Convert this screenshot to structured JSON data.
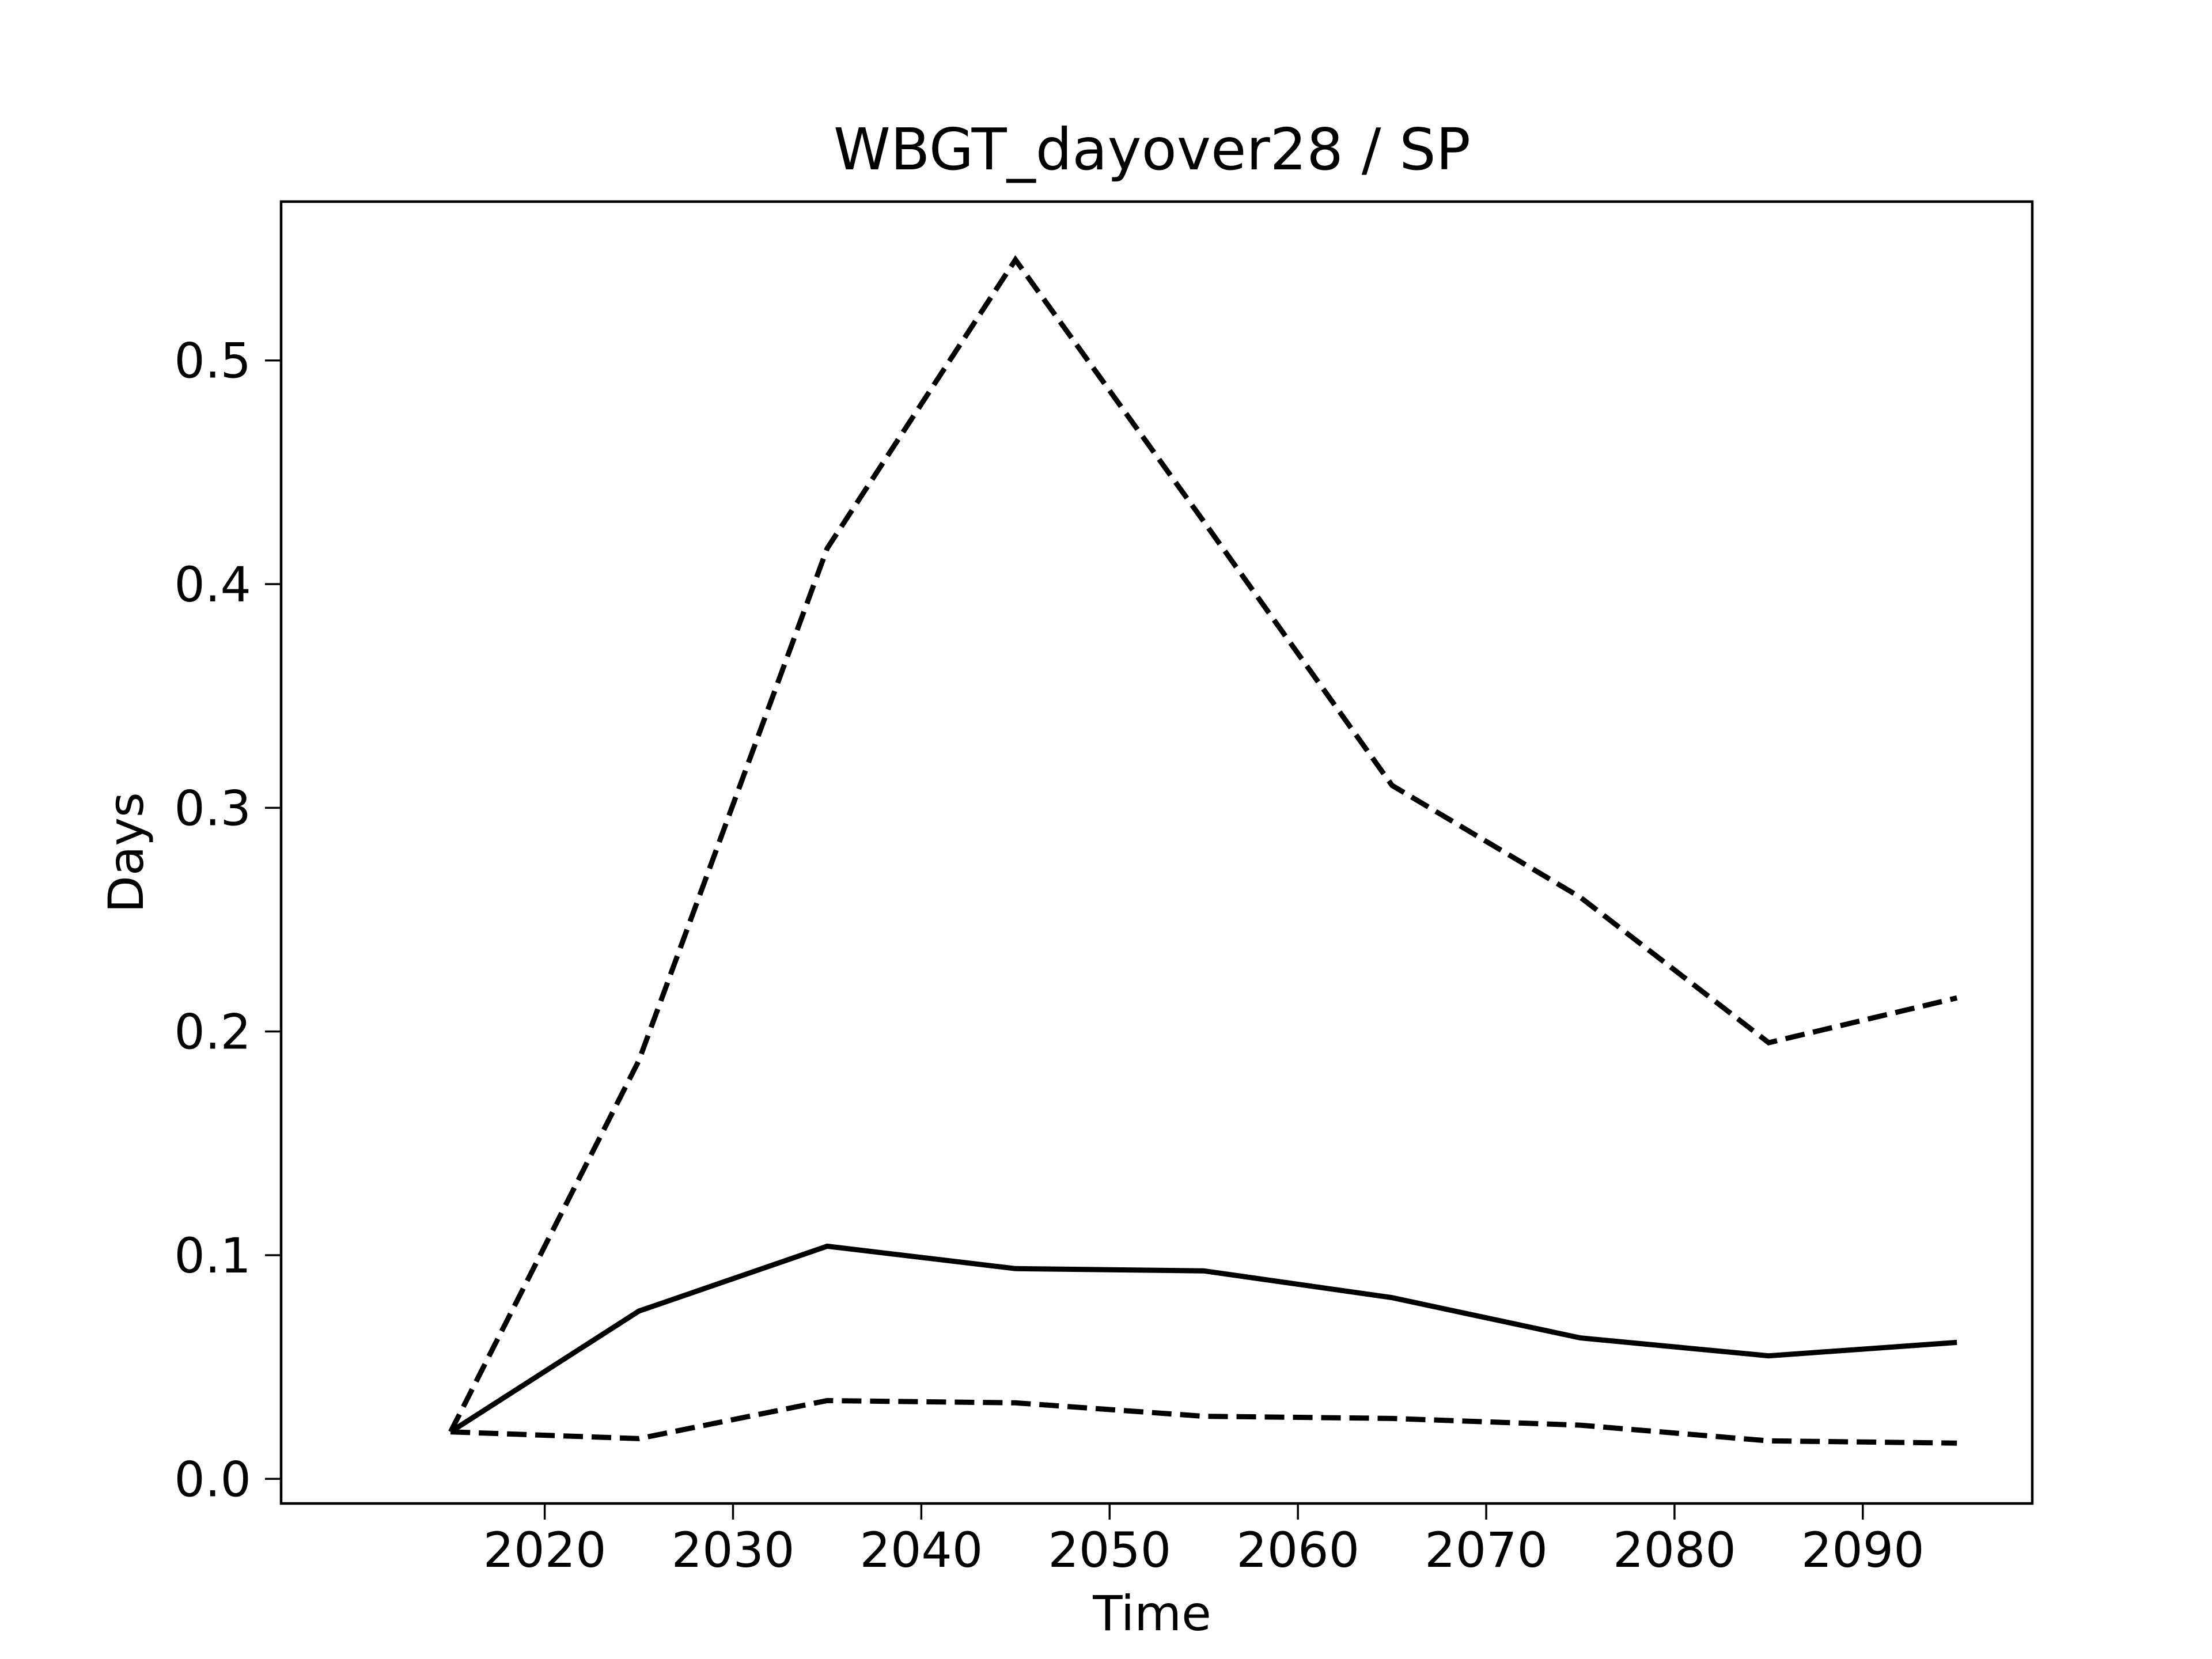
{
  "chart_data": {
    "type": "line",
    "title": "WBGT_dayover28 / SP",
    "xlabel": "Time",
    "ylabel": "Days",
    "x": [
      2015,
      2025,
      2035,
      2045,
      2055,
      2065,
      2075,
      2085,
      2095
    ],
    "xlim": [
      2006,
      2099
    ],
    "ylim": [
      -0.011,
      0.571
    ],
    "xticks": [
      2020,
      2030,
      2040,
      2050,
      2060,
      2070,
      2080,
      2090
    ],
    "yticks": [
      0.0,
      0.1,
      0.2,
      0.3,
      0.4,
      0.5
    ],
    "ytick_labels": [
      "0.0",
      "0.1",
      "0.2",
      "0.3",
      "0.4",
      "0.5"
    ],
    "grid": false,
    "series": [
      {
        "style": "solid",
        "color": "#000000",
        "values": [
          0.021,
          0.075,
          0.104,
          0.094,
          0.093,
          0.081,
          0.063,
          0.055,
          0.061
        ]
      },
      {
        "style": "dashed",
        "color": "#000000",
        "values": [
          0.021,
          0.187,
          0.416,
          0.545,
          0.428,
          0.31,
          0.26,
          0.195,
          0.215
        ]
      },
      {
        "style": "dashed",
        "color": "#000000",
        "values": [
          0.021,
          0.018,
          0.035,
          0.034,
          0.028,
          0.027,
          0.024,
          0.017,
          0.016
        ]
      }
    ]
  }
}
